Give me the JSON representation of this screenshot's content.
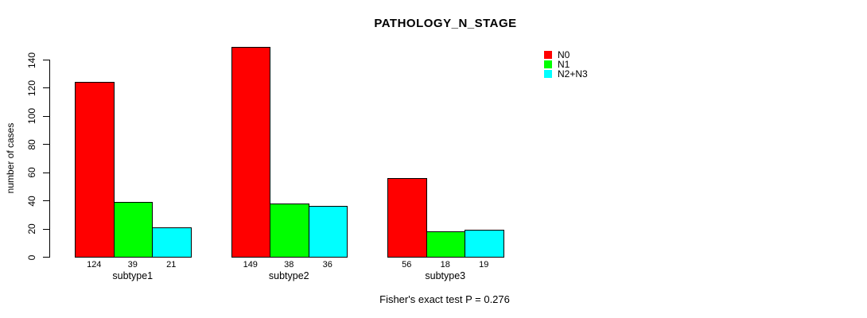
{
  "chart_data": {
    "type": "bar",
    "title": "PATHOLOGY_N_STAGE",
    "xlabel": "",
    "ylabel": "number of cases",
    "categories": [
      "subtype1",
      "subtype2",
      "subtype3"
    ],
    "series": [
      {
        "name": "N0",
        "color": "#ff0000",
        "values": [
          124,
          149,
          56
        ]
      },
      {
        "name": "N1",
        "color": "#00ff00",
        "values": [
          39,
          38,
          18
        ]
      },
      {
        "name": "N2+N3",
        "color": "#00ffff",
        "values": [
          21,
          36,
          19
        ]
      }
    ],
    "ylim": [
      0,
      140
    ],
    "yticks": [
      0,
      20,
      40,
      60,
      80,
      100,
      120,
      140
    ],
    "grid": false,
    "legend_position": "top-right",
    "bar_value_labels_shown": true,
    "annotation": "Fisher's exact test P = 0.276"
  }
}
